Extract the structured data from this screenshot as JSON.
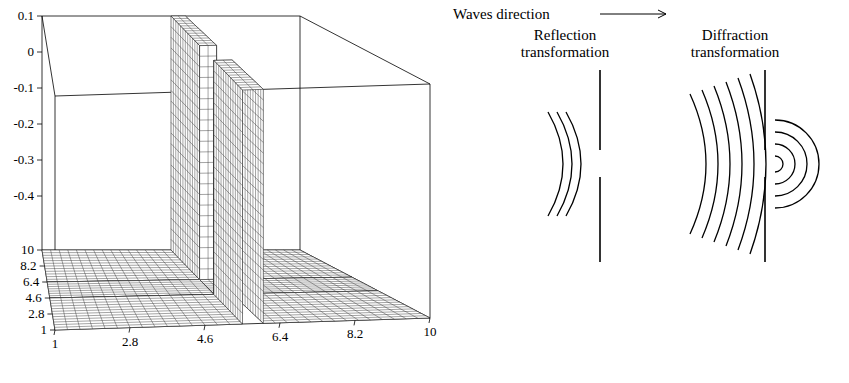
{
  "chart_data": {
    "type": "surface",
    "x": [
      1,
      5.5,
      5.5,
      6,
      6,
      10
    ],
    "y": [
      1,
      4.6,
      4.6,
      6.4,
      6.4,
      10
    ],
    "z": [
      [
        -0.55,
        -0.55,
        0.1,
        0.1,
        -0.55,
        -0.55
      ],
      [
        -0.55,
        -0.55,
        0.1,
        0.1,
        -0.55,
        -0.55
      ],
      [
        -0.55,
        -0.55,
        -0.55,
        -0.55,
        -0.55,
        -0.55
      ],
      [
        -0.55,
        -0.55,
        -0.55,
        -0.55,
        -0.55,
        -0.55
      ],
      [
        -0.55,
        -0.55,
        0.1,
        0.1,
        -0.55,
        -0.55
      ],
      [
        -0.55,
        -0.55,
        0.1,
        0.1,
        -0.55,
        -0.55
      ]
    ],
    "xlim": [
      1,
      10
    ],
    "ylim": [
      1,
      10
    ],
    "zlim": [
      -0.55,
      0.1
    ],
    "xticks": [
      1,
      2.8,
      4.6,
      6.4,
      8.2,
      10
    ],
    "yticks": [
      1,
      2.8,
      4.6,
      6.4,
      8.2,
      10
    ],
    "zticks": [
      0.1,
      0,
      -0.1,
      -0.2,
      -0.3,
      -0.4
    ]
  },
  "diagram": {
    "direction_label": "Waves direction",
    "panels": [
      "Reflection transformation",
      "Diffraction transformation"
    ]
  }
}
